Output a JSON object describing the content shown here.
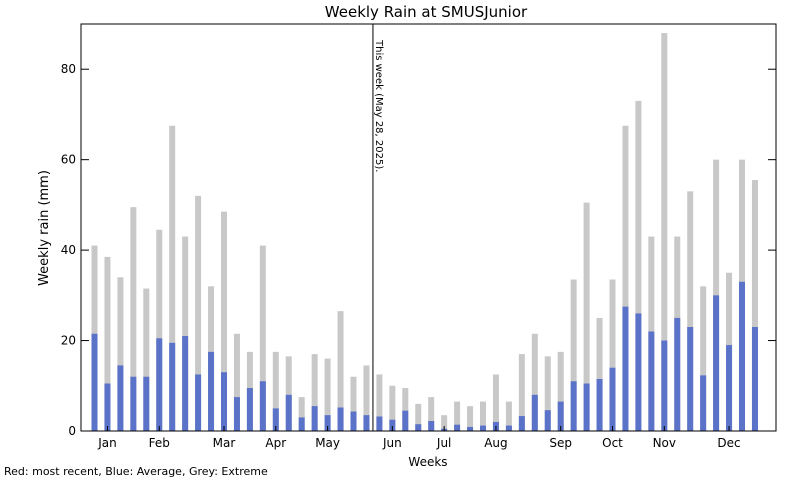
{
  "chart_data": {
    "type": "bar",
    "title": "Weekly Rain at SMUSJunior",
    "xlabel": "Weeks",
    "ylabel": "Weekly rain (mm)",
    "ylim": [
      0,
      90
    ],
    "y_ticks": [
      0,
      20,
      40,
      60,
      80
    ],
    "x_ticks": [
      {
        "label": "Jan",
        "week": 2
      },
      {
        "label": "Feb",
        "week": 6
      },
      {
        "label": "Mar",
        "week": 11
      },
      {
        "label": "Apr",
        "week": 15
      },
      {
        "label": "May",
        "week": 19
      },
      {
        "label": "Jun",
        "week": 24
      },
      {
        "label": "Jul",
        "week": 28
      },
      {
        "label": "Aug",
        "week": 32
      },
      {
        "label": "Sep",
        "week": 37
      },
      {
        "label": "Oct",
        "week": 41
      },
      {
        "label": "Nov",
        "week": 45
      },
      {
        "label": "Dec",
        "week": 50
      }
    ],
    "weeks": [
      1,
      2,
      3,
      4,
      5,
      6,
      7,
      8,
      9,
      10,
      11,
      12,
      13,
      14,
      15,
      16,
      17,
      18,
      19,
      20,
      21,
      22,
      23,
      24,
      25,
      26,
      27,
      28,
      29,
      30,
      31,
      32,
      33,
      34,
      35,
      36,
      37,
      38,
      39,
      40,
      41,
      42,
      43,
      44,
      45,
      46,
      47,
      48,
      49,
      50,
      51,
      52
    ],
    "series": [
      {
        "name": "Extreme",
        "color": "#c8c8c8",
        "values": [
          41,
          38.5,
          34,
          49.5,
          31.5,
          44.5,
          67.5,
          43,
          52,
          32,
          48.5,
          21.5,
          17.5,
          41,
          17.5,
          16.5,
          7.5,
          17,
          16,
          26.5,
          12,
          14.5,
          12.5,
          10,
          9.5,
          6,
          7.5,
          3.5,
          6.5,
          5.5,
          6.5,
          12.5,
          6.5,
          17,
          21.5,
          16.5,
          17.5,
          33.5,
          50.5,
          25,
          33.5,
          67.5,
          73,
          43,
          88,
          43,
          53,
          32,
          60,
          35,
          60,
          55.5
        ]
      },
      {
        "name": "Average",
        "color": "#5a72c8",
        "values": [
          21.5,
          10.5,
          14.5,
          12,
          12,
          20.5,
          19.5,
          21,
          12.5,
          17.5,
          13,
          7.5,
          9.5,
          11,
          5,
          8,
          3,
          5.5,
          3.5,
          5.2,
          4.3,
          3.5,
          3.2,
          2.5,
          4.5,
          1.5,
          2.2,
          0.5,
          1.4,
          0.9,
          1.2,
          2,
          1.2,
          3.3,
          8,
          4.6,
          6.5,
          11,
          10.5,
          11.5,
          14,
          27.5,
          26,
          22,
          20,
          25,
          23,
          12.3,
          30,
          19,
          33,
          23
        ]
      }
    ],
    "annotation": {
      "text": "This week (May 28, 2025).",
      "week": 22
    },
    "footnote": "Red: most recent, Blue: Average, Grey: Extreme"
  }
}
